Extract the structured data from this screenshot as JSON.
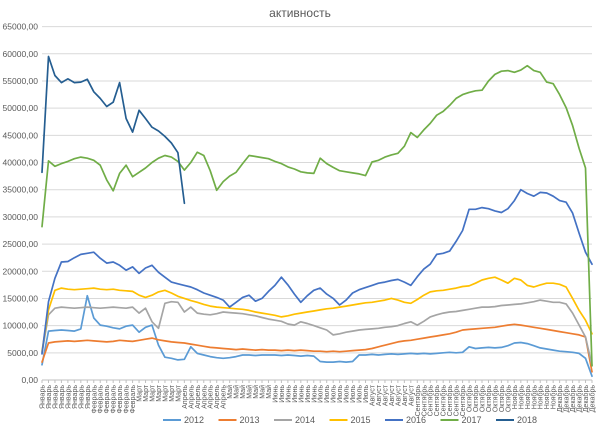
{
  "title": "активность",
  "colors": {
    "grid": "#D9D9D9",
    "axis": "#BFBFBF",
    "text": "#595959"
  },
  "chart_data": {
    "type": "line",
    "title": "активность",
    "grid": true,
    "legend_position": "bottom",
    "y_axis": {
      "min": 0,
      "max": 65000,
      "step": 5000,
      "decimal_suffix": ",00"
    },
    "x_axis": {
      "months": [
        {
          "label": "Январь",
          "count": 8
        },
        {
          "label": "Февраль",
          "count": 7
        },
        {
          "label": "Март",
          "count": 7
        },
        {
          "label": "Апрель",
          "count": 7
        },
        {
          "label": "Май",
          "count": 7
        },
        {
          "label": "Июнь",
          "count": 7
        },
        {
          "label": "Июль",
          "count": 8
        },
        {
          "label": "Август",
          "count": 7
        },
        {
          "label": "Сентябрь",
          "count": 8
        },
        {
          "label": "Октябрь",
          "count": 7
        },
        {
          "label": "Ноябрь",
          "count": 7
        },
        {
          "label": "Декабрь",
          "count": 6
        }
      ]
    },
    "series": [
      {
        "name": "2012",
        "color": "#5B9BD5",
        "values": [
          2800,
          9000,
          9100,
          9200,
          9100,
          9000,
          9400,
          15500,
          11400,
          10100,
          9900,
          9600,
          9400,
          9900,
          10100,
          8800,
          9700,
          10100,
          6400,
          4200,
          4000,
          3700,
          3800,
          6100,
          4900,
          4600,
          4300,
          4100,
          4000,
          4100,
          4300,
          4600,
          4600,
          4500,
          4600,
          4600,
          4600,
          4500,
          4600,
          4500,
          4400,
          4500,
          4400,
          3400,
          3300,
          3300,
          3400,
          3300,
          3400,
          4600,
          4600,
          4700,
          4600,
          4700,
          4800,
          4700,
          4800,
          4900,
          4800,
          4900,
          4800,
          4900,
          5000,
          5100,
          5000,
          5100,
          6100,
          5800,
          5900,
          6000,
          5900,
          6000,
          6300,
          6800,
          6900,
          6700,
          6300,
          5900,
          5700,
          5500,
          5300,
          5200,
          5100,
          4900,
          4000,
          700
        ]
      },
      {
        "name": "2013",
        "color": "#ED7D31",
        "values": [
          3300,
          6800,
          7000,
          7100,
          7200,
          7100,
          7200,
          7300,
          7200,
          7100,
          7000,
          7100,
          7300,
          7200,
          7100,
          7300,
          7500,
          7700,
          7400,
          7200,
          7000,
          6900,
          6800,
          6600,
          6400,
          6200,
          6000,
          5900,
          5800,
          5700,
          5600,
          5700,
          5600,
          5500,
          5600,
          5500,
          5500,
          5400,
          5500,
          5400,
          5500,
          5400,
          5300,
          5300,
          5200,
          5300,
          5200,
          5300,
          5400,
          5500,
          5600,
          5800,
          6100,
          6400,
          6700,
          7000,
          7200,
          7300,
          7500,
          7700,
          7900,
          8100,
          8300,
          8500,
          8800,
          9200,
          9300,
          9400,
          9500,
          9600,
          9700,
          9900,
          10100,
          10250,
          10100,
          9900,
          9700,
          9500,
          9300,
          9100,
          8900,
          8700,
          8500,
          8300,
          7900,
          1500
        ]
      },
      {
        "name": "2014",
        "color": "#A5A5A5",
        "values": [
          5000,
          12000,
          13200,
          13400,
          13300,
          13200,
          13300,
          13400,
          13300,
          13200,
          13300,
          13400,
          13300,
          13200,
          13400,
          12300,
          13200,
          10700,
          9500,
          14100,
          14400,
          14300,
          12500,
          13400,
          12300,
          12100,
          12000,
          12200,
          12500,
          12400,
          12300,
          12200,
          12000,
          11800,
          11500,
          11200,
          11000,
          10800,
          10300,
          10100,
          10700,
          10400,
          10000,
          9600,
          9200,
          8300,
          8500,
          8800,
          9000,
          9200,
          9300,
          9400,
          9500,
          9700,
          9800,
          10000,
          10400,
          10700,
          10100,
          10800,
          11600,
          12000,
          12300,
          12500,
          12600,
          12800,
          13000,
          13200,
          13400,
          13400,
          13500,
          13700,
          13800,
          13900,
          14000,
          14200,
          14400,
          14700,
          14500,
          14300,
          14300,
          14000,
          12300,
          10100,
          7900,
          2700
        ]
      },
      {
        "name": "2015",
        "color": "#FFC000",
        "values": [
          5300,
          12900,
          16500,
          16900,
          16700,
          16600,
          16700,
          16800,
          16900,
          16700,
          16600,
          16700,
          16500,
          16400,
          16300,
          15600,
          15200,
          15600,
          16200,
          16500,
          16000,
          15400,
          15000,
          14600,
          14300,
          13900,
          13600,
          13400,
          13300,
          13200,
          13100,
          13000,
          12800,
          12500,
          12300,
          12100,
          11900,
          11600,
          11800,
          12100,
          12300,
          12500,
          12700,
          12900,
          13100,
          13200,
          13400,
          13600,
          13800,
          14000,
          14200,
          14300,
          14500,
          14700,
          15000,
          14700,
          14300,
          14100,
          14800,
          15600,
          16200,
          16400,
          16500,
          16700,
          16900,
          17200,
          17300,
          17800,
          18400,
          18700,
          18900,
          18400,
          17800,
          18700,
          18400,
          17400,
          17100,
          17500,
          17800,
          17800,
          17600,
          17100,
          15000,
          12800,
          11000,
          8500
        ]
      },
      {
        "name": "2016",
        "color": "#4472C4",
        "values": [
          4800,
          14400,
          18700,
          21700,
          21800,
          22500,
          23100,
          23300,
          23500,
          22400,
          21500,
          21700,
          21100,
          20200,
          20800,
          19600,
          20600,
          21100,
          19800,
          18900,
          18000,
          17700,
          17400,
          17100,
          16600,
          16000,
          15600,
          15200,
          14700,
          13400,
          14300,
          15200,
          15600,
          14500,
          15000,
          16300,
          17400,
          18900,
          17500,
          15800,
          14300,
          15500,
          16500,
          16900,
          15800,
          15000,
          13800,
          14700,
          16000,
          16600,
          17000,
          17400,
          17800,
          18000,
          18300,
          18500,
          18000,
          17400,
          19000,
          20400,
          21300,
          23100,
          23300,
          23700,
          25500,
          27500,
          31400,
          31400,
          31700,
          31500,
          31100,
          30800,
          31500,
          33000,
          35000,
          34300,
          33800,
          34500,
          34400,
          33800,
          33000,
          32700,
          30700,
          27000,
          23500,
          21300
        ]
      },
      {
        "name": "2017",
        "color": "#70AD47",
        "values": [
          28200,
          40300,
          39300,
          39800,
          40200,
          40700,
          41000,
          40800,
          40400,
          39500,
          36800,
          34800,
          38000,
          39500,
          37400,
          38200,
          39000,
          40000,
          40800,
          41300,
          41000,
          40200,
          38600,
          40000,
          41900,
          41300,
          38500,
          34900,
          36500,
          37500,
          38200,
          39800,
          41300,
          41100,
          40900,
          40700,
          40200,
          39800,
          39200,
          38800,
          38300,
          38100,
          38000,
          40800,
          39800,
          39100,
          38500,
          38300,
          38100,
          37900,
          37600,
          40100,
          40400,
          41000,
          41400,
          41700,
          43000,
          45500,
          44600,
          46000,
          47200,
          48700,
          49400,
          50500,
          51800,
          52500,
          52900,
          53200,
          53300,
          55000,
          56200,
          56800,
          56900,
          56600,
          57000,
          57800,
          56900,
          56600,
          54800,
          54500,
          52500,
          50100,
          46800,
          42600,
          39000,
          2600
        ]
      },
      {
        "name": "2018",
        "color": "#255E91",
        "values": [
          38200,
          59500,
          56000,
          54700,
          55400,
          54700,
          54800,
          55300,
          53000,
          51800,
          50300,
          51100,
          54700,
          48100,
          45600,
          49600,
          48100,
          46500,
          45800,
          44800,
          43600,
          41800,
          32500
        ]
      }
    ]
  }
}
